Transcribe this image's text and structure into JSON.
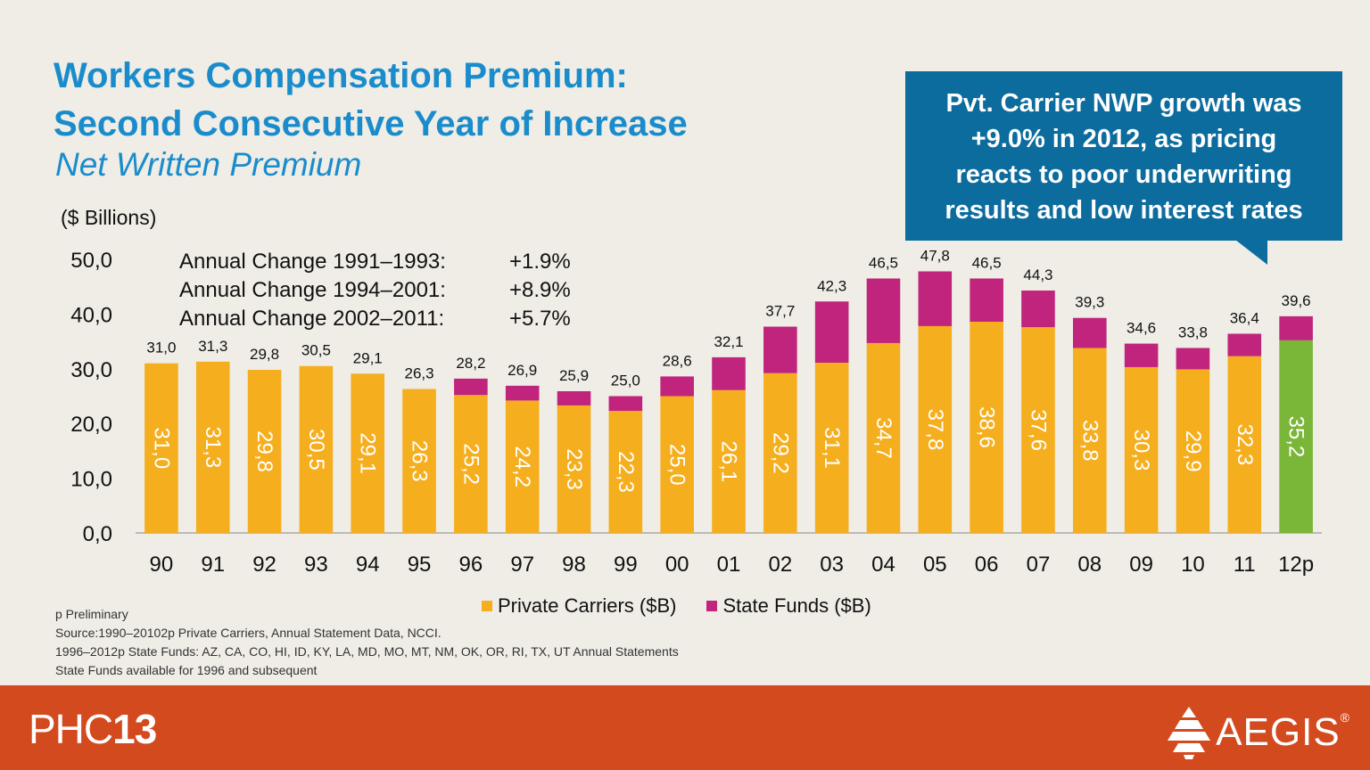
{
  "title_line1": "Workers Compensation Premium:",
  "title_line2": "Second Consecutive Year of Increase",
  "subtitle": "Net Written Premium",
  "callout": {
    "line1": "Pvt. Carrier NWP growth was",
    "line2": "+9.0% in 2012, as pricing",
    "line3": "reacts to poor underwriting",
    "line4": "results and low interest rates"
  },
  "annual_changes": [
    {
      "label": "Annual Change 1991–1993:",
      "value": "+1.9%"
    },
    {
      "label": "Annual Change 1994–2001:",
      "value": "+8.9%"
    },
    {
      "label": "Annual Change 2002–2011:",
      "value": "+5.7%"
    }
  ],
  "footnotes": [
    "p Preliminary",
    "Source:1990–20102p Private Carriers, Annual Statement Data, NCCI.",
    "1996–2012p State Funds: AZ, CA, CO, HI, ID, KY, LA, MD, MO, MT,  NM, OK, OR, RI, TX,  UT Annual Statements",
    "State Funds available for 1996 and subsequent"
  ],
  "footer": {
    "left_logo_text": "PHC",
    "left_logo_number": "13",
    "right_logo_text": "AEGIS",
    "right_logo_mark": "®"
  },
  "chart_data": {
    "type": "bar",
    "stacked": true,
    "ylabel": "($ Billions)",
    "ylim": [
      0,
      50
    ],
    "yticks": [
      "0,0",
      "10,0",
      "20,0",
      "30,0",
      "40,0",
      "50,0"
    ],
    "grid": false,
    "legend_position": "bottom",
    "categories": [
      "90",
      "91",
      "92",
      "93",
      "94",
      "95",
      "96",
      "97",
      "98",
      "99",
      "00",
      "01",
      "02",
      "03",
      "04",
      "05",
      "06",
      "07",
      "08",
      "09",
      "10",
      "11",
      "12p"
    ],
    "series": [
      {
        "name": "Private Carriers ($B)",
        "color": "#f5ae1e",
        "values": [
          31.0,
          31.3,
          29.8,
          30.5,
          29.1,
          26.3,
          25.2,
          24.2,
          23.3,
          22.3,
          25.0,
          26.1,
          29.2,
          31.1,
          34.7,
          37.8,
          38.6,
          37.6,
          33.8,
          30.3,
          29.9,
          32.3,
          35.2
        ],
        "labels": [
          "31,0",
          "31,3",
          "29,8",
          "30,5",
          "29,1",
          "26,3",
          "25,2",
          "24,2",
          "23,3",
          "22,3",
          "25,0",
          "26,1",
          "29,2",
          "31,1",
          "34,7",
          "37,8",
          "38,6",
          "37,6",
          "33,8",
          "30,3",
          "29,9",
          "32,3",
          "35,2"
        ]
      },
      {
        "name": "State Funds ($B)",
        "color": "#c1247c",
        "values": [
          0,
          0,
          0,
          0,
          0,
          0,
          3.0,
          2.7,
          2.6,
          2.7,
          3.6,
          6.0,
          8.5,
          11.2,
          11.8,
          10.0,
          7.9,
          6.7,
          5.5,
          4.3,
          3.9,
          4.1,
          4.4
        ]
      }
    ],
    "totals": [
      "31,0",
      "31,3",
      "29,8",
      "30,5",
      "29,1",
      "26,3",
      "28,2",
      "26,9",
      "25,9",
      "25,0",
      "28,6",
      "32,1",
      "37,7",
      "42,3",
      "46,5",
      "47,8",
      "46,5",
      "44,3",
      "39,3",
      "34,6",
      "33,8",
      "36,4",
      "39,6"
    ],
    "highlight": {
      "category": "12p",
      "color": "#7ab637"
    }
  }
}
